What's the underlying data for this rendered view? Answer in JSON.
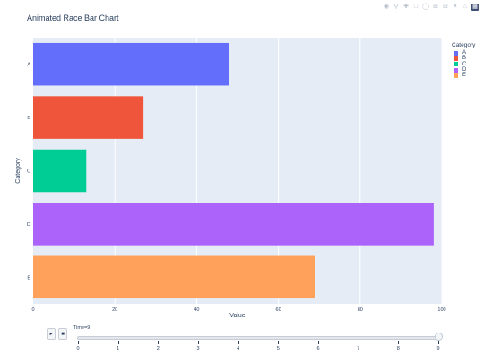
{
  "chart_data": {
    "type": "bar",
    "orientation": "horizontal",
    "title": "Animated Race Bar Chart",
    "xlabel": "Value",
    "ylabel": "Category",
    "xlim": [
      0,
      100
    ],
    "x_ticks": [
      0,
      20,
      40,
      60,
      80,
      100
    ],
    "categories": [
      "A",
      "B",
      "C",
      "D",
      "E"
    ],
    "values": [
      48,
      27,
      13,
      98,
      69
    ],
    "colors": [
      "#636efa",
      "#ef553b",
      "#00cc96",
      "#ab63fa",
      "#ffa15a"
    ],
    "legend": {
      "title": "Category",
      "position": "top-right",
      "items": [
        "A",
        "B",
        "C",
        "D",
        "E"
      ]
    },
    "grid": true,
    "slider": {
      "label": "Time=9",
      "ticks": [
        "0",
        "1",
        "2",
        "3",
        "4",
        "5",
        "6",
        "7",
        "8",
        "9"
      ],
      "current": 9
    },
    "controls": {
      "play_icon": "play-icon",
      "stop_icon": "stop-icon"
    }
  },
  "modebar": [
    "camera-icon",
    "zoom-icon",
    "pan-icon",
    "box-select-icon",
    "lasso-icon",
    "zoom-in-icon",
    "zoom-out-icon",
    "autoscale-icon",
    "home-icon",
    "plotly-logo-icon"
  ]
}
